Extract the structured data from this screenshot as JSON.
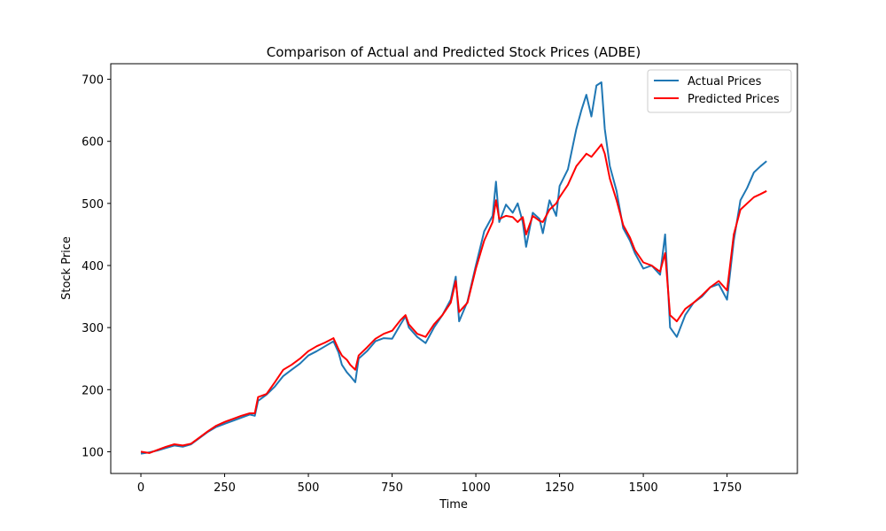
{
  "chart_data": {
    "type": "line",
    "title": "Comparison of Actual and Predicted Stock Prices (ADBE)",
    "xlabel": "Time",
    "ylabel": "Stock Price",
    "xlim": [
      -90,
      1960
    ],
    "ylim": [
      65,
      725
    ],
    "x_ticks": [
      0,
      250,
      500,
      750,
      1000,
      1250,
      1500,
      1750
    ],
    "y_ticks": [
      100,
      200,
      300,
      400,
      500,
      600,
      700
    ],
    "grid": false,
    "legend_position": "top-right",
    "series": [
      {
        "name": "Actual Prices",
        "color": "#1f77b4",
        "x": [
          0,
          25,
          50,
          75,
          100,
          125,
          150,
          175,
          200,
          225,
          250,
          275,
          300,
          325,
          340,
          350,
          375,
          400,
          425,
          450,
          475,
          500,
          525,
          550,
          575,
          590,
          600,
          615,
          625,
          640,
          650,
          675,
          700,
          725,
          750,
          775,
          790,
          800,
          825,
          850,
          875,
          900,
          925,
          940,
          950,
          975,
          1000,
          1025,
          1050,
          1060,
          1070,
          1090,
          1110,
          1125,
          1140,
          1150,
          1170,
          1190,
          1200,
          1220,
          1240,
          1250,
          1275,
          1300,
          1315,
          1330,
          1345,
          1360,
          1375,
          1385,
          1400,
          1420,
          1440,
          1460,
          1475,
          1500,
          1525,
          1550,
          1565,
          1580,
          1600,
          1625,
          1650,
          1675,
          1700,
          1725,
          1750,
          1770,
          1790,
          1810,
          1830,
          1850,
          1868
        ],
        "values": [
          97,
          99,
          102,
          106,
          110,
          108,
          112,
          122,
          132,
          140,
          145,
          150,
          155,
          160,
          158,
          182,
          192,
          205,
          222,
          232,
          242,
          255,
          262,
          270,
          278,
          260,
          240,
          228,
          222,
          212,
          250,
          262,
          278,
          283,
          282,
          305,
          318,
          300,
          285,
          275,
          300,
          320,
          345,
          382,
          310,
          342,
          400,
          455,
          480,
          535,
          470,
          498,
          485,
          500,
          470,
          430,
          485,
          475,
          452,
          505,
          480,
          528,
          555,
          620,
          650,
          675,
          640,
          690,
          695,
          620,
          560,
          520,
          460,
          440,
          420,
          395,
          400,
          385,
          450,
          300,
          285,
          320,
          340,
          350,
          365,
          370,
          345,
          440,
          505,
          525,
          550,
          560,
          568
        ]
      },
      {
        "name": "Predicted Prices",
        "color": "#ff0000",
        "x": [
          0,
          25,
          50,
          75,
          100,
          125,
          150,
          175,
          200,
          225,
          250,
          275,
          300,
          325,
          340,
          350,
          375,
          400,
          425,
          450,
          475,
          500,
          525,
          550,
          575,
          590,
          600,
          615,
          625,
          640,
          650,
          675,
          700,
          725,
          750,
          775,
          790,
          800,
          825,
          850,
          875,
          900,
          925,
          940,
          950,
          975,
          1000,
          1025,
          1050,
          1060,
          1070,
          1090,
          1110,
          1125,
          1140,
          1150,
          1170,
          1190,
          1200,
          1220,
          1240,
          1250,
          1275,
          1300,
          1315,
          1330,
          1345,
          1360,
          1375,
          1385,
          1400,
          1420,
          1440,
          1460,
          1475,
          1500,
          1525,
          1550,
          1565,
          1580,
          1600,
          1625,
          1650,
          1675,
          1700,
          1725,
          1750,
          1770,
          1790,
          1810,
          1830,
          1850,
          1868
        ],
        "values": [
          100,
          98,
          103,
          108,
          112,
          110,
          113,
          123,
          133,
          142,
          148,
          153,
          158,
          162,
          162,
          188,
          193,
          212,
          232,
          240,
          250,
          262,
          270,
          276,
          283,
          265,
          255,
          248,
          240,
          232,
          255,
          268,
          282,
          290,
          295,
          312,
          320,
          305,
          290,
          285,
          305,
          320,
          340,
          375,
          325,
          340,
          395,
          440,
          470,
          505,
          475,
          480,
          478,
          470,
          478,
          450,
          480,
          472,
          470,
          490,
          500,
          510,
          530,
          560,
          570,
          580,
          575,
          585,
          595,
          580,
          540,
          505,
          465,
          445,
          425,
          405,
          400,
          390,
          420,
          320,
          310,
          330,
          340,
          352,
          365,
          375,
          360,
          450,
          490,
          500,
          510,
          515,
          520
        ]
      }
    ]
  }
}
